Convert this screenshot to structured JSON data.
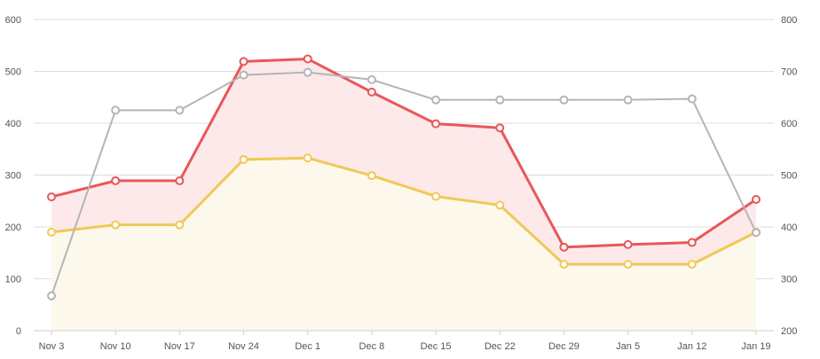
{
  "chart_data": {
    "type": "area",
    "categories": [
      "Nov 3",
      "Nov 10",
      "Nov 17",
      "Nov 24",
      "Dec 1",
      "Dec 8",
      "Dec 15",
      "Dec 22",
      "Dec 29",
      "Jan 5",
      "Jan 12",
      "Jan 19"
    ],
    "title": "",
    "xlabel": "",
    "ylabel": "",
    "ylim": [
      0,
      600
    ],
    "y_ticks": [
      "0",
      "100",
      "200",
      "300",
      "400",
      "500",
      "600"
    ],
    "y2lim": [
      200,
      800
    ],
    "y2_ticks": [
      "200",
      "300",
      "400",
      "500",
      "600",
      "700",
      "800"
    ],
    "grid": true,
    "legend": "none",
    "series": [
      {
        "axis": "left",
        "style": "area",
        "color": "#e8575a",
        "fill": "#fde9ea",
        "values": [
          258,
          289,
          289,
          519,
          524,
          460,
          399,
          391,
          161,
          166,
          170,
          253
        ]
      },
      {
        "axis": "left",
        "style": "area",
        "color": "#efc957",
        "fill": "#fdf8ec",
        "values": [
          190,
          204,
          204,
          330,
          333,
          299,
          259,
          242,
          128,
          128,
          128,
          190
        ]
      },
      {
        "axis": "right",
        "style": "line",
        "color": "#b5b5b5",
        "values": [
          267,
          625,
          625,
          693,
          698,
          684,
          645,
          645,
          645,
          645,
          647,
          389
        ]
      }
    ]
  }
}
